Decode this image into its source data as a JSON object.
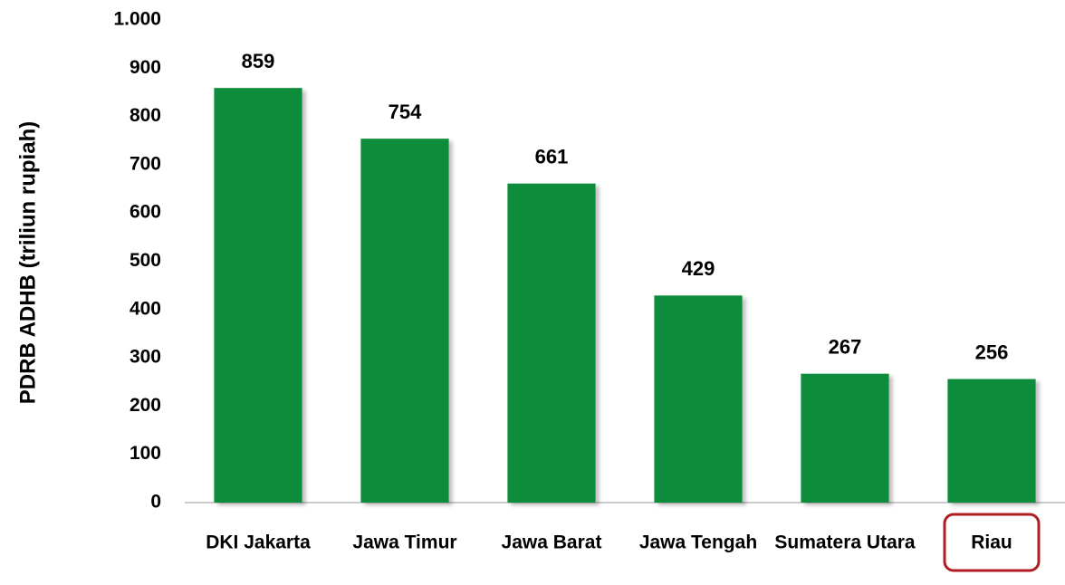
{
  "chart_data": {
    "type": "bar",
    "y_label": "PDRB ADHB (triliun rupiah)",
    "categories": [
      "DKI Jakarta",
      "Jawa Timur",
      "Jawa Barat",
      "Jawa Tengah",
      "Sumatera Utara",
      "Riau"
    ],
    "values": [
      859,
      754,
      661,
      429,
      267,
      256
    ],
    "color": "#0b8c3b",
    "ylim": [
      0,
      1000
    ],
    "yticks": [
      0,
      100,
      200,
      300,
      400,
      500,
      600,
      700,
      800,
      900,
      {
        "value": 1000,
        "label": "1.000"
      }
    ],
    "grid": false
  }
}
